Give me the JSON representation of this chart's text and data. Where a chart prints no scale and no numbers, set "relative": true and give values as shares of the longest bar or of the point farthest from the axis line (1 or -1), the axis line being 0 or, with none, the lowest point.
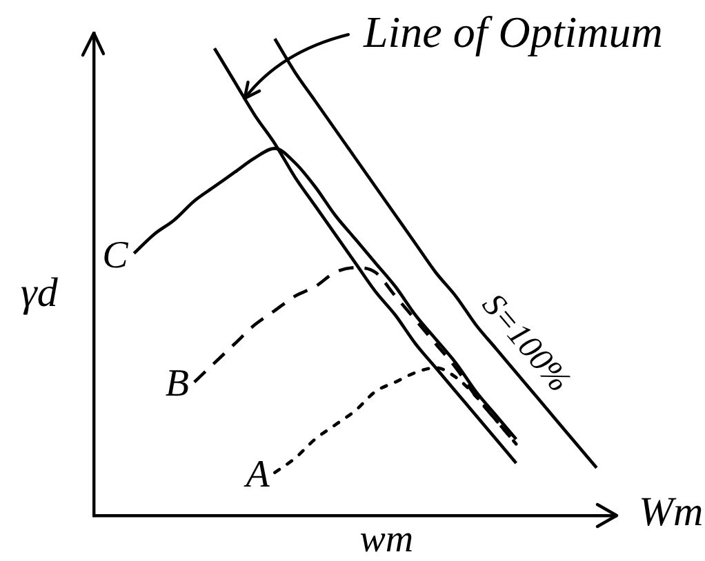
{
  "chart_data": {
    "type": "line",
    "relative": true,
    "ylabel": "γd",
    "xlabel": "wm",
    "annotations": [
      "Wm"
    ],
    "line_style": "solid",
    "categories": [
      null,
      null,
      null,
      null,
      null,
      null,
      null,
      null,
      null,
      null,
      null,
      null,
      null,
      null,
      null,
      null,
      null,
      null,
      null,
      null,
      null,
      null,
      null,
      null,
      null,
      null,
      null
    ],
    "series": [
      {
        "name": "C",
        "color": "#000000",
        "values": [
          null,
          null,
          0.55,
          0.59,
          0.62,
          0.66,
          0.69,
          0.72,
          0.75,
          0.77,
          0.74,
          0.69,
          0.63,
          0.58,
          0.53,
          0.48,
          0.42,
          0.37,
          0.32,
          0.26,
          0.21,
          0.16,
          null,
          null,
          null,
          null,
          null
        ]
      },
      {
        "name": "B",
        "color": "#000000",
        "line_style": "dashed",
        "values": [
          null,
          null,
          null,
          null,
          null,
          0.28,
          0.32,
          0.36,
          0.4,
          0.43,
          0.46,
          0.48,
          0.51,
          0.52,
          0.51,
          0.46,
          0.41,
          0.36,
          0.31,
          0.25,
          0.2,
          0.15,
          null,
          null,
          null,
          null,
          null
        ]
      },
      {
        "name": "A",
        "color": "#000000",
        "line_style": "dotted",
        "values": [
          null,
          null,
          null,
          null,
          null,
          null,
          null,
          null,
          null,
          0.09,
          0.12,
          0.16,
          0.19,
          0.22,
          0.26,
          0.28,
          0.3,
          0.31,
          0.29,
          0.25,
          0.2,
          0.15,
          null,
          null,
          null,
          null,
          null
        ]
      },
      {
        "name": "Line of Optimum",
        "color": "#000000",
        "values": [
          null,
          null,
          null,
          null,
          null,
          null,
          0.98,
          0.91,
          0.84,
          0.78,
          0.71,
          0.65,
          0.59,
          0.53,
          0.47,
          0.42,
          0.36,
          0.31,
          0.26,
          0.21,
          0.16,
          0.11,
          null,
          null,
          null,
          null,
          null
        ]
      },
      {
        "name": "S=100%",
        "color": "#000000",
        "values": [
          null,
          null,
          null,
          null,
          null,
          null,
          null,
          null,
          null,
          1.0,
          0.93,
          0.87,
          0.81,
          0.75,
          0.69,
          0.63,
          0.57,
          0.51,
          0.46,
          0.4,
          0.35,
          0.3,
          0.25,
          0.2,
          0.15,
          0.1,
          null
        ]
      }
    ]
  }
}
